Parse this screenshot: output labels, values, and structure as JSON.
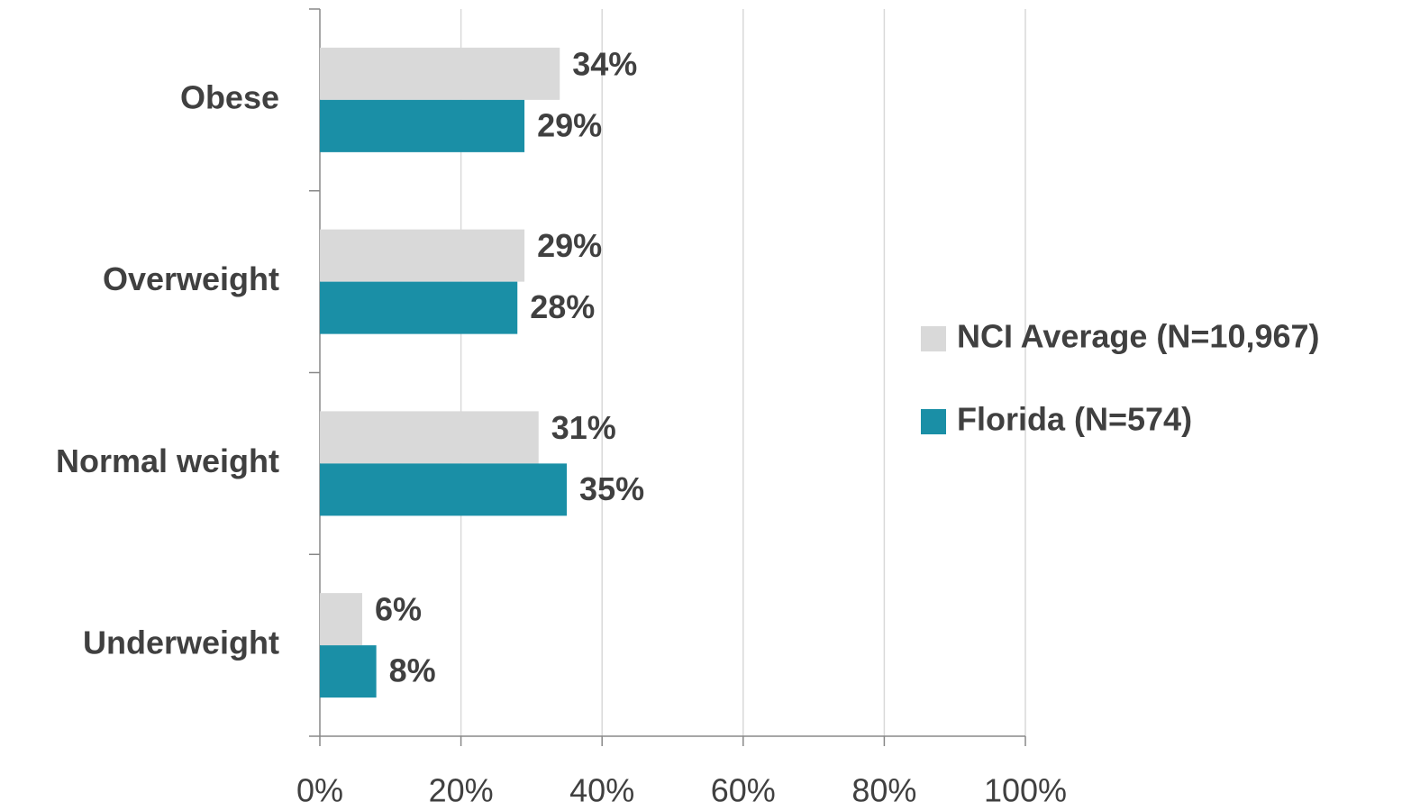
{
  "chart_data": {
    "type": "hbar",
    "categories": [
      "Obese",
      "Overweight",
      "Normal weight",
      "Underweight"
    ],
    "series": [
      {
        "name": "NCI Average (N=10,967)",
        "color": "#d9d9d9",
        "values": [
          34,
          29,
          31,
          6
        ],
        "value_labels": [
          "34%",
          "29%",
          "31%",
          "6%"
        ]
      },
      {
        "name": "Florida (N=574)",
        "color": "#1a8fa6",
        "values": [
          29,
          28,
          35,
          8
        ],
        "value_labels": [
          "29%",
          "28%",
          "35%",
          "8%"
        ]
      }
    ],
    "xlim": [
      0,
      100
    ],
    "xticks": [
      {
        "value": 0,
        "label": "0%"
      },
      {
        "value": 20,
        "label": "20%"
      },
      {
        "value": 40,
        "label": "40%"
      },
      {
        "value": 60,
        "label": "60%"
      },
      {
        "value": 80,
        "label": "80%"
      },
      {
        "value": 100,
        "label": "100%"
      }
    ],
    "grid": true,
    "legend": "right"
  }
}
